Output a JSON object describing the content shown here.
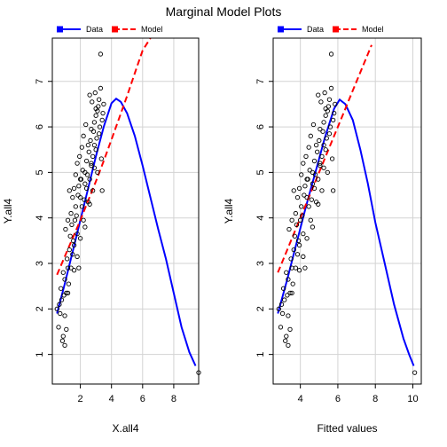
{
  "title": "Marginal Model Plots",
  "colors": {
    "data": "#0000ff",
    "model": "#ff0000",
    "grid": "#d3d3d3",
    "points": "#000000"
  },
  "chart_data": [
    {
      "type": "scatter",
      "xlabel": "X.all4",
      "ylabel": "Y.all4",
      "xlim": [
        0.2,
        9.6
      ],
      "ylim": [
        0.35,
        7.95
      ],
      "xticks": [
        2,
        4,
        6,
        8
      ],
      "yticks": [
        1,
        2,
        3,
        4,
        5,
        6,
        7
      ],
      "grid": true,
      "legend": {
        "position": "top",
        "entries": [
          "Data",
          "Model"
        ]
      },
      "series": [
        {
          "name": "Data",
          "kind": "line",
          "color": "#0000ff",
          "style": "solid",
          "x": [
            0.5,
            1.0,
            1.5,
            2.0,
            2.5,
            3.0,
            3.5,
            4.0,
            4.3,
            4.6,
            5.0,
            5.5,
            6.0,
            6.5,
            7.0,
            7.5,
            8.0,
            8.5,
            9.0,
            9.4
          ],
          "y": [
            1.9,
            2.55,
            3.25,
            3.95,
            4.65,
            5.35,
            6.0,
            6.52,
            6.62,
            6.55,
            6.3,
            5.8,
            5.15,
            4.45,
            3.75,
            3.1,
            2.35,
            1.6,
            1.05,
            0.75
          ]
        },
        {
          "name": "Model",
          "kind": "line",
          "color": "#ff0000",
          "style": "dashed",
          "x": [
            0.5,
            1.0,
            1.5,
            2.0,
            2.5,
            3.0,
            3.5,
            4.0,
            4.5,
            5.0,
            5.5,
            6.0,
            6.5
          ],
          "y": [
            2.75,
            3.15,
            3.55,
            3.95,
            4.38,
            4.8,
            5.25,
            5.72,
            6.2,
            6.68,
            7.18,
            7.68,
            7.95
          ]
        },
        {
          "kind": "points",
          "x": [
            0.5,
            0.6,
            0.65,
            0.7,
            0.75,
            0.8,
            0.85,
            0.9,
            0.95,
            1.0,
            1.0,
            1.05,
            1.1,
            1.1,
            1.15,
            1.2,
            1.2,
            1.25,
            1.3,
            1.3,
            1.35,
            1.4,
            1.4,
            1.45,
            1.5,
            1.5,
            1.55,
            1.6,
            1.6,
            1.65,
            1.7,
            1.7,
            1.75,
            1.8,
            1.8,
            1.85,
            1.9,
            1.9,
            1.95,
            2.0,
            2.0,
            2.05,
            2.1,
            2.1,
            2.15,
            2.2,
            2.2,
            2.25,
            2.3,
            2.3,
            2.35,
            2.4,
            2.4,
            2.45,
            2.5,
            2.5,
            2.55,
            2.6,
            2.6,
            2.65,
            2.7,
            2.7,
            2.75,
            2.8,
            2.8,
            2.85,
            2.9,
            2.9,
            2.95,
            3.0,
            3.0,
            3.05,
            3.1,
            3.1,
            3.15,
            3.2,
            3.2,
            3.25,
            3.3,
            3.35,
            3.4,
            3.4,
            3.45,
            3.5,
            2.0,
            2.3,
            2.6,
            1.2,
            1.0,
            0.9,
            3.0,
            3.3,
            2.7,
            2.9,
            1.6,
            1.8,
            9.6
          ],
          "y": [
            2.0,
            1.6,
            2.1,
            1.9,
            2.45,
            2.2,
            1.3,
            2.8,
            2.3,
            1.85,
            2.65,
            3.75,
            2.35,
            1.55,
            3.1,
            2.9,
            3.95,
            2.55,
            3.3,
            4.6,
            3.6,
            2.9,
            4.1,
            3.85,
            4.45,
            3.2,
            3.5,
            4.65,
            2.85,
            3.95,
            4.25,
            4.95,
            4.05,
            3.65,
            5.2,
            4.5,
            2.9,
            4.7,
            5.35,
            4.45,
            3.55,
            4.85,
            5.55,
            4.25,
            5.05,
            3.95,
            5.8,
            4.4,
            5.0,
            4.75,
            6.05,
            4.65,
            5.25,
            4.95,
            4.35,
            5.6,
            5.45,
            4.85,
            6.7,
            5.7,
            5.15,
            5.95,
            6.55,
            4.6,
            5.35,
            5.9,
            5.1,
            6.1,
            6.75,
            5.5,
            6.25,
            5.75,
            6.35,
            5.0,
            6.45,
            5.85,
            6.6,
            6.0,
            6.85,
            5.3,
            6.15,
            4.6,
            6.3,
            6.5,
            4.85,
            3.8,
            4.3,
            2.35,
            1.2,
            1.4,
            6.4,
            7.6,
            5.2,
            5.6,
            3.4,
            3.15,
            0.6
          ]
        }
      ]
    },
    {
      "type": "scatter",
      "xlabel": "Fitted values",
      "ylabel": "Y.all4",
      "xlim": [
        2.55,
        10.45
      ],
      "ylim": [
        0.35,
        7.95
      ],
      "xticks": [
        4,
        6,
        8,
        10
      ],
      "yticks": [
        1,
        2,
        3,
        4,
        5,
        6,
        7
      ],
      "grid": true,
      "legend": {
        "position": "top",
        "entries": [
          "Data",
          "Model"
        ]
      },
      "series": [
        {
          "name": "Data",
          "kind": "line",
          "color": "#0000ff",
          "style": "solid",
          "x": [
            2.8,
            3.3,
            3.8,
            4.3,
            4.8,
            5.3,
            5.8,
            6.1,
            6.4,
            6.8,
            7.2,
            7.6,
            8.0,
            8.5,
            9.0,
            9.5,
            9.8,
            10.05
          ],
          "y": [
            1.9,
            2.65,
            3.45,
            4.25,
            5.0,
            5.75,
            6.4,
            6.6,
            6.5,
            6.15,
            5.5,
            4.75,
            3.9,
            3.0,
            2.1,
            1.35,
            1.0,
            0.75
          ]
        },
        {
          "name": "Model",
          "kind": "line",
          "color": "#ff0000",
          "style": "dashed",
          "x": [
            2.8,
            3.3,
            3.8,
            4.3,
            4.8,
            5.3,
            5.8,
            6.3,
            6.8,
            7.3,
            7.8
          ],
          "y": [
            2.8,
            3.3,
            3.8,
            4.3,
            4.8,
            5.3,
            5.8,
            6.3,
            6.8,
            7.3,
            7.8
          ]
        },
        {
          "kind": "points",
          "x": [
            2.85,
            2.95,
            3.0,
            3.05,
            3.1,
            3.15,
            3.2,
            3.25,
            3.3,
            3.35,
            3.35,
            3.4,
            3.45,
            3.45,
            3.5,
            3.55,
            3.55,
            3.6,
            3.65,
            3.65,
            3.7,
            3.75,
            3.75,
            3.8,
            3.85,
            3.85,
            3.9,
            3.95,
            3.95,
            4.0,
            4.05,
            4.05,
            4.1,
            4.15,
            4.15,
            4.2,
            4.25,
            4.25,
            4.3,
            4.35,
            4.35,
            4.4,
            4.45,
            4.45,
            4.5,
            4.55,
            4.55,
            4.6,
            4.65,
            4.65,
            4.7,
            4.75,
            4.75,
            4.8,
            4.85,
            4.85,
            4.9,
            4.95,
            4.95,
            5.0,
            5.05,
            5.05,
            5.1,
            5.15,
            5.15,
            5.2,
            5.25,
            5.25,
            5.3,
            5.35,
            5.35,
            5.4,
            5.45,
            5.45,
            5.5,
            5.55,
            5.55,
            5.6,
            5.65,
            5.7,
            5.75,
            5.75,
            5.8,
            5.85,
            4.35,
            4.65,
            4.95,
            3.55,
            3.35,
            3.25,
            5.35,
            5.65,
            5.05,
            5.25,
            3.95,
            4.15,
            10.1
          ],
          "y": [
            2.0,
            1.6,
            2.1,
            1.9,
            2.45,
            2.2,
            1.3,
            2.8,
            2.3,
            1.85,
            2.65,
            3.75,
            2.35,
            1.55,
            3.1,
            2.9,
            3.95,
            2.55,
            3.3,
            4.6,
            3.6,
            2.9,
            4.1,
            3.85,
            4.45,
            3.2,
            3.5,
            4.65,
            2.85,
            3.95,
            4.25,
            4.95,
            4.05,
            3.65,
            5.2,
            4.5,
            2.9,
            4.7,
            5.35,
            4.45,
            3.55,
            4.85,
            5.55,
            4.25,
            5.05,
            3.95,
            5.8,
            4.4,
            5.0,
            4.75,
            6.05,
            4.65,
            5.25,
            4.95,
            4.35,
            5.6,
            5.45,
            4.85,
            6.7,
            5.7,
            5.15,
            5.95,
            6.55,
            4.6,
            5.35,
            5.9,
            5.1,
            6.1,
            6.75,
            5.5,
            6.25,
            5.75,
            6.35,
            5.0,
            6.45,
            5.85,
            6.6,
            6.0,
            6.85,
            5.3,
            6.15,
            4.6,
            6.3,
            6.5,
            4.85,
            3.8,
            4.3,
            2.35,
            1.2,
            1.4,
            6.4,
            7.6,
            5.2,
            5.6,
            3.4,
            3.15,
            0.6
          ]
        }
      ]
    }
  ]
}
